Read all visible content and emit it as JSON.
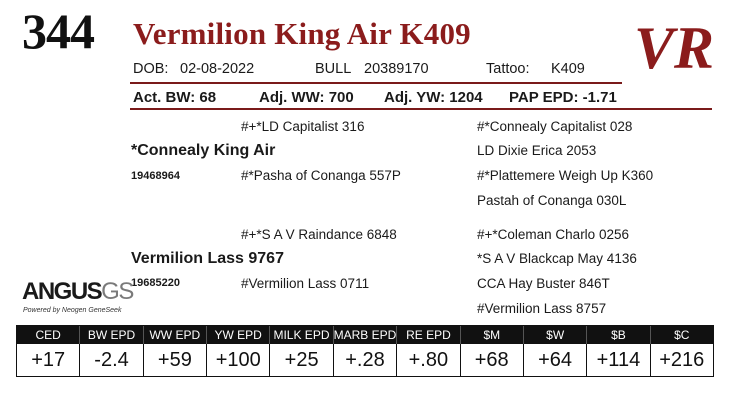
{
  "header": {
    "lot": "344",
    "name": "Vermilion King Air K409",
    "logo_text": "VR",
    "brand_color": "#8b1c1c"
  },
  "info": {
    "dob_label": "DOB:",
    "dob": "02-08-2022",
    "sex": "BULL",
    "reg": "20389170",
    "tattoo_label": "Tattoo:",
    "tattoo": "K409"
  },
  "weights": {
    "bw": "Act. BW: 68",
    "ww": "Adj. WW: 700",
    "yw": "Adj. YW: 1204",
    "pap": "PAP EPD: -1.71"
  },
  "pedigree": {
    "sire": "*Connealy King Air",
    "sire_reg": "19468964",
    "sire_sire": "#+*LD Capitalist 316",
    "sire_dam": "#*Pasha of Conanga 557P",
    "sss": "#*Connealy Capitalist 028",
    "ssd": "LD Dixie Erica 2053",
    "sds": "#*Plattemere Weigh Up K360",
    "sdd": "Pastah of Conanga 030L",
    "dam": "Vermilion Lass 9767",
    "dam_reg": "19685220",
    "dam_sire": "#+*S A V Raindance 6848",
    "dam_dam": "#Vermilion Lass 0711",
    "dss": "#+*Coleman Charlo 0256",
    "dsd": "*S A V Blackcap May 4136",
    "dds": "CCA Hay Buster 846T",
    "ddd": "#Vermilion Lass 8757"
  },
  "angus_logo": {
    "word": "ANGUS",
    "suffix": "GS",
    "tagline": "Powered by Neogen GeneSeek"
  },
  "epds": {
    "headers": [
      "CED",
      "BW EPD",
      "WW EPD",
      "YW EPD",
      "MILK EPD",
      "MARB EPD",
      "RE EPD",
      "$M",
      "$W",
      "$B",
      "$C"
    ],
    "values": [
      "+17",
      "-2.4",
      "+59",
      "+100",
      "+25",
      "+.28",
      "+.80",
      "+68",
      "+64",
      "+114",
      "+216"
    ]
  }
}
